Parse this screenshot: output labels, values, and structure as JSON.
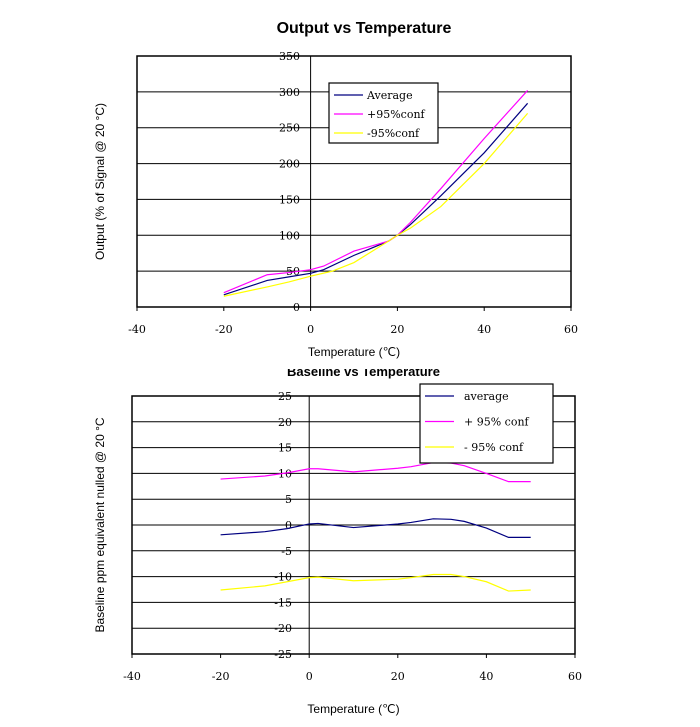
{
  "chart_data": [
    {
      "type": "line",
      "title": "Output vs Temperature",
      "xlabel": "Temperature (℃)",
      "ylabel": "Output (% of Signal @ 20 °C)",
      "xlim": [
        -40,
        60
      ],
      "ylim": [
        0,
        350
      ],
      "xticks": [
        -40,
        -20,
        0,
        20,
        40,
        60
      ],
      "yticks": [
        0,
        50,
        100,
        150,
        200,
        250,
        300,
        350
      ],
      "grid": "horizontal",
      "legend": "top-center",
      "series": [
        {
          "name": "Average",
          "color": "#000080",
          "x": [
            -20,
            -10,
            -5,
            0,
            3,
            10,
            18,
            20,
            23,
            30,
            40,
            50
          ],
          "y": [
            17,
            37,
            42,
            47,
            52,
            72,
            92,
            100,
            115,
            155,
            215,
            284
          ]
        },
        {
          "name": "+95%conf",
          "color": "#ff00ff",
          "x": [
            -20,
            -10,
            -5,
            0,
            3,
            10,
            18,
            20,
            23,
            30,
            40,
            50
          ],
          "y": [
            20,
            45,
            48,
            52,
            57,
            78,
            92,
            100,
            118,
            165,
            235,
            302
          ]
        },
        {
          "name": "-95%conf",
          "color": "#ffff00",
          "x": [
            -20,
            -10,
            -5,
            0,
            5,
            10,
            18,
            20,
            23,
            30,
            40,
            50
          ],
          "y": [
            15,
            28,
            35,
            43,
            50,
            62,
            92,
            100,
            110,
            140,
            200,
            270
          ]
        }
      ]
    },
    {
      "type": "line",
      "title": "Baseline vs Temperature",
      "xlabel": "Temperature (℃)",
      "ylabel": "Baseline ppm equivalent nulled  @ 20 °C",
      "xlim": [
        -40,
        60
      ],
      "ylim": [
        -25,
        25
      ],
      "xticks": [
        -40,
        -20,
        0,
        20,
        40,
        60
      ],
      "yticks": [
        -25,
        -20,
        -15,
        -10,
        -5,
        0,
        5,
        10,
        15,
        20,
        25
      ],
      "grid": "horizontal",
      "legend": "top-right",
      "series": [
        {
          "name": "average",
          "color": "#000080",
          "x": [
            -20,
            -10,
            -5,
            0,
            2,
            10,
            20,
            23,
            28,
            32,
            35,
            40,
            45,
            50
          ],
          "y": [
            -1.9,
            -1.3,
            -0.7,
            0.2,
            0.3,
            -0.5,
            0.2,
            0.5,
            1.2,
            1.1,
            0.7,
            -0.6,
            -2.4,
            -2.4
          ]
        },
        {
          "name": "+ 95% conf",
          "color": "#ff00ff",
          "x": [
            -20,
            -10,
            -5,
            0,
            2,
            10,
            20,
            23,
            28,
            32,
            35,
            40,
            45,
            50
          ],
          "y": [
            8.9,
            9.5,
            10.1,
            10.9,
            10.9,
            10.3,
            11,
            11.3,
            12.1,
            12,
            11.5,
            10,
            8.4,
            8.4
          ]
        },
        {
          "name": "- 95% conf",
          "color": "#ffff00",
          "x": [
            -20,
            -10,
            -5,
            0,
            2,
            10,
            20,
            23,
            28,
            32,
            35,
            40,
            45,
            50
          ],
          "y": [
            -12.6,
            -11.8,
            -11,
            -10.2,
            -10.1,
            -10.8,
            -10.5,
            -10.2,
            -9.6,
            -9.6,
            -10,
            -11,
            -12.8,
            -12.6
          ]
        }
      ]
    }
  ]
}
